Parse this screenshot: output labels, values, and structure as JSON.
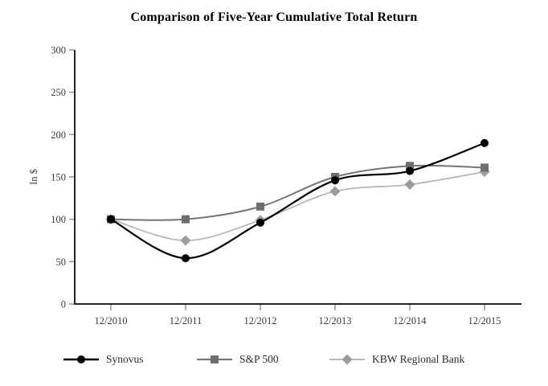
{
  "title": "Comparison of Five-Year Cumulative Total Return",
  "chart_data": {
    "type": "line",
    "title": "Comparison of Five-Year Cumulative Total Return",
    "xlabel": "",
    "ylabel": "In $",
    "ylim": [
      0,
      300
    ],
    "yticks": [
      0,
      50,
      100,
      150,
      200,
      250,
      300
    ],
    "categories": [
      "12/2010",
      "12/2011",
      "12/2012",
      "12/2013",
      "12/2014",
      "12/2015"
    ],
    "grid": false,
    "line_style": "smooth",
    "legend_position": "bottom",
    "axis_color": "#262626",
    "tick_color": "#999999",
    "series": [
      {
        "name": "Synovus",
        "marker": "circle",
        "line_color": "#000000",
        "marker_color": "#000000",
        "line_width": 2.2,
        "values": [
          100,
          54,
          96,
          146,
          157,
          190
        ]
      },
      {
        "name": "S&P 500",
        "marker": "square",
        "line_color": "#757575",
        "marker_color": "#6e6e6e",
        "line_width": 2,
        "values": [
          100,
          100,
          115,
          150,
          163,
          161
        ]
      },
      {
        "name": "KBW Regional Bank",
        "marker": "diamond",
        "line_color": "#b8b8b8",
        "marker_color": "#9c9c9c",
        "line_width": 1.8,
        "values": [
          100,
          75,
          99,
          133,
          141,
          156
        ]
      }
    ]
  }
}
